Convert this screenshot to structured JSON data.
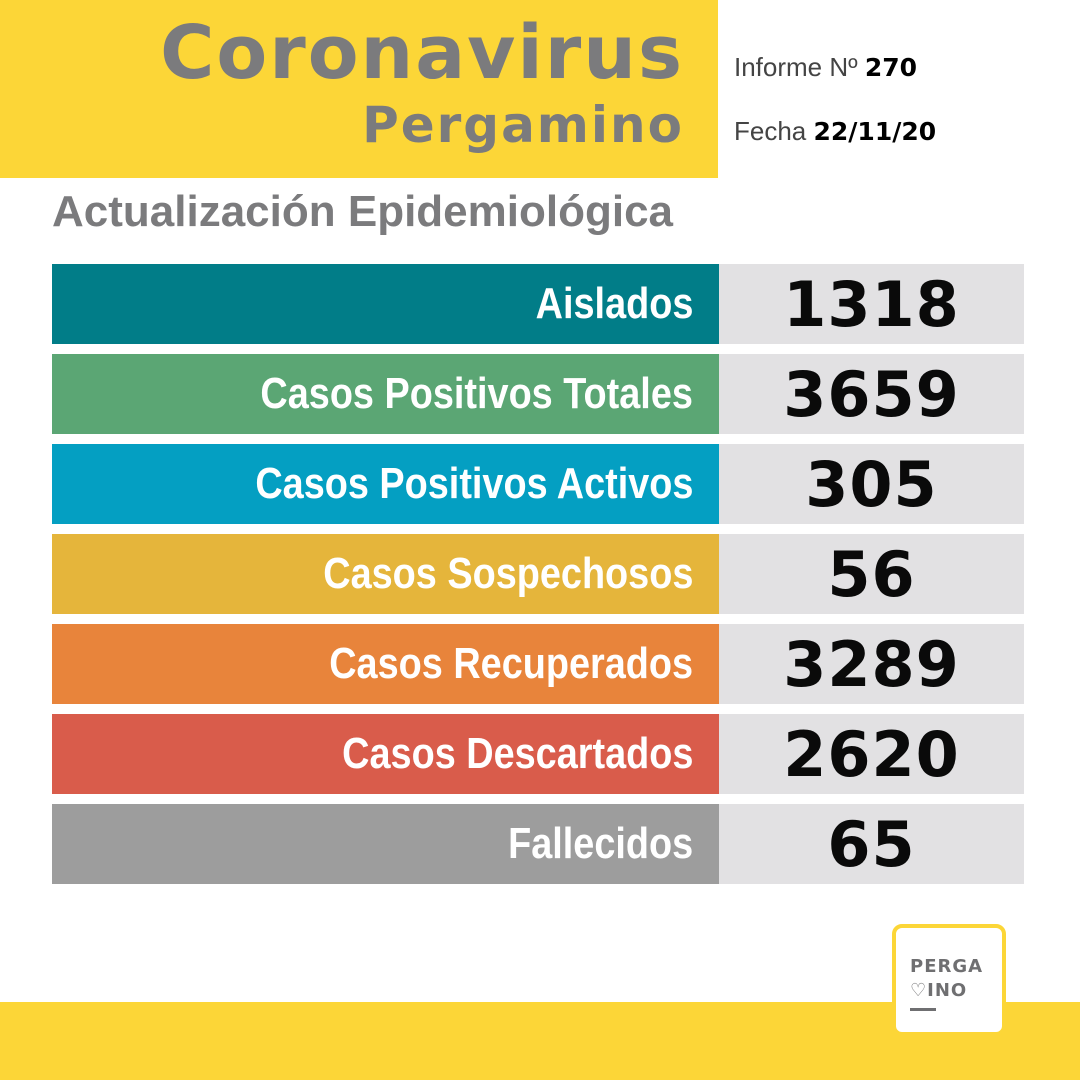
{
  "header": {
    "title": "Coronavirus",
    "subtitle": "Pergamino",
    "informe_label": "Informe Nº",
    "informe_number": "270",
    "fecha_label": "Fecha",
    "fecha_value": "22/11/20"
  },
  "section_title": "Actualización Epidemiológica",
  "rows": [
    {
      "label": "Aislados",
      "value": "1318",
      "color": "#017d88"
    },
    {
      "label": "Casos Positivos Totales",
      "value": "3659",
      "color": "#5ba674"
    },
    {
      "label": "Casos Positivos Activos",
      "value": "305",
      "color": "#049fc2"
    },
    {
      "label": "Casos Sospechosos",
      "value": "56",
      "color": "#e5b53b"
    },
    {
      "label": "Casos Recuperados",
      "value": "3289",
      "color": "#e8843b"
    },
    {
      "label": "Casos Descartados",
      "value": "2620",
      "color": "#d95c4b"
    },
    {
      "label": "Fallecidos",
      "value": "65",
      "color": "#9d9d9d"
    }
  ],
  "logo": {
    "line1": "PERGA",
    "line2": "♡INO"
  },
  "colors": {
    "accent_yellow": "#fcd637",
    "title_gray": "#7b7b7d",
    "value_bg": "#e2e1e3"
  }
}
